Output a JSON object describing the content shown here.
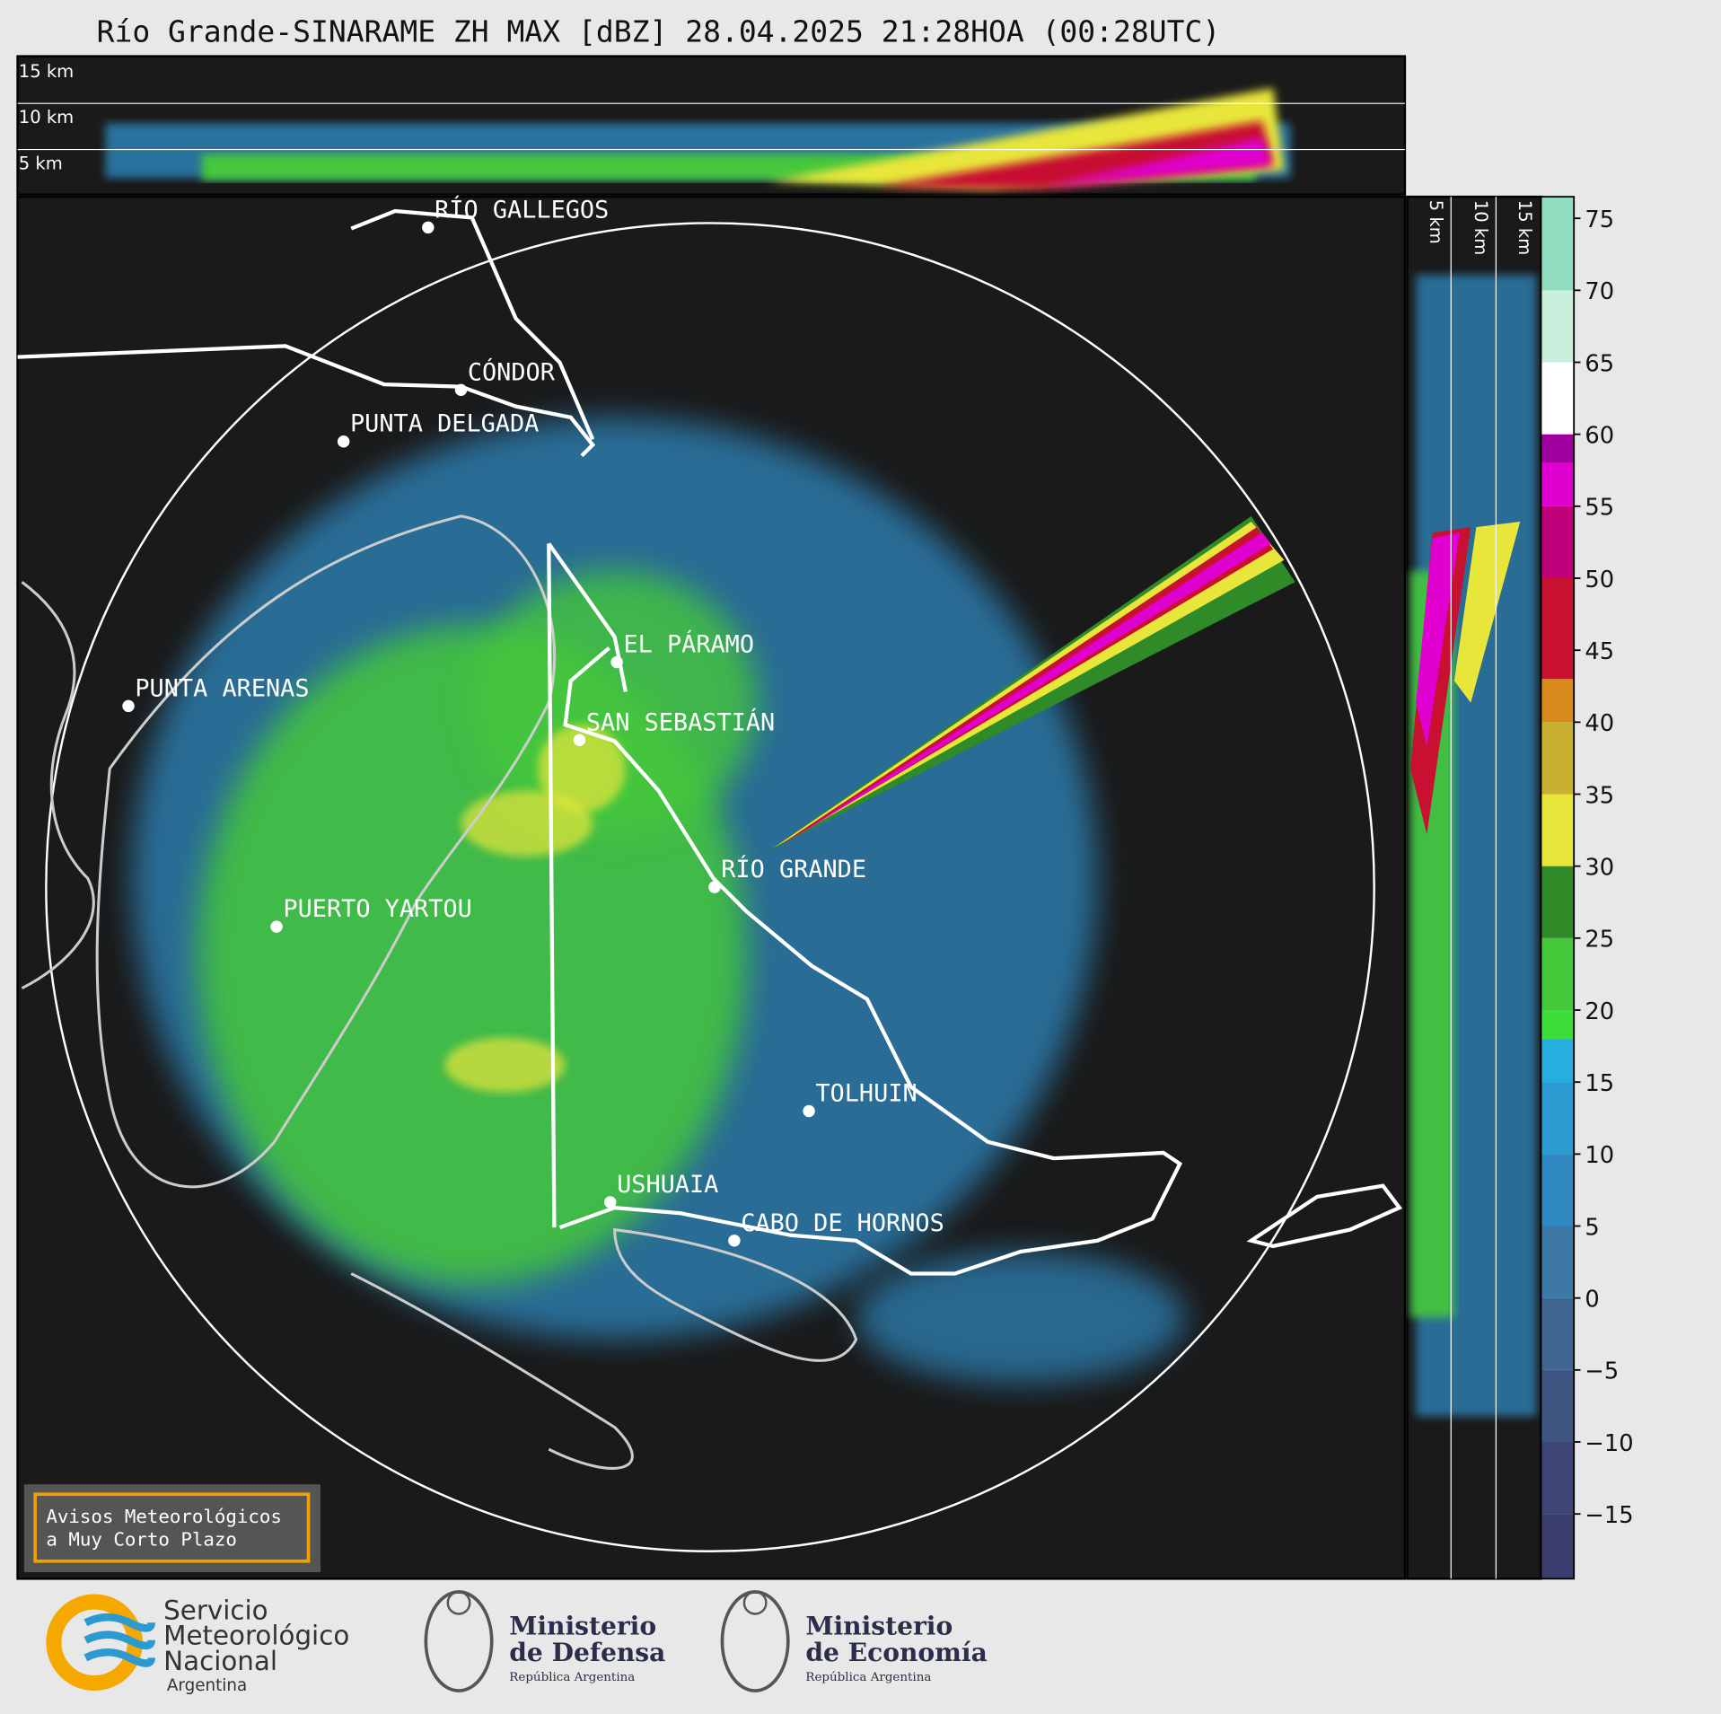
{
  "header": {
    "title": "Río Grande-SINARAME ZH MAX [dBZ] 28.04.2025 21:28HOA (00:28UTC)"
  },
  "top_panel": {
    "labels": [
      "15 km",
      "10 km",
      "5 km"
    ]
  },
  "side_panel": {
    "labels": [
      "5 km",
      "10 km",
      "15 km"
    ]
  },
  "places": [
    "RÍO GALLEGOS",
    "CÓNDOR",
    "PUNTA DELGADA",
    "EL PÁRAMO",
    "PUNTA ARENAS",
    "SAN SEBASTIÁN",
    "RÍO GRANDE",
    "PUERTO YARTOU",
    "TOLHUIN",
    "USHUAIA",
    "CABO DE HORNOS"
  ],
  "colorbar": {
    "lim": [
      -19.5,
      76.5
    ],
    "ticks": [
      75,
      70,
      65,
      60,
      55,
      50,
      45,
      40,
      35,
      30,
      25,
      20,
      15,
      10,
      5,
      0,
      {
        "value": -5,
        "label": "−5"
      },
      {
        "value": -10,
        "label": "−10"
      },
      {
        "value": -15,
        "label": "−15"
      }
    ],
    "bounds": [
      -19.5,
      -15,
      -10,
      -5,
      0,
      5,
      10,
      15,
      18,
      20,
      25,
      30,
      35,
      40,
      43,
      50,
      55,
      58,
      60,
      65,
      70,
      76.5
    ],
    "colors": [
      "#3a3d6e",
      "#3d4677",
      "#3f5582",
      "#3f6690",
      "#3d77a5",
      "#2f88bf",
      "#2a9ad0",
      "#27aee0",
      "#3ede3a",
      "#44c83a",
      "#2f8a28",
      "#e8e63a",
      "#c9b030",
      "#d98a1c",
      "#c81030",
      "#c0007a",
      "#e000d0",
      "#a000a0",
      "#ffffff",
      "#c8f0dd",
      "#8fdcbf"
    ]
  },
  "warning": {
    "lines": [
      "Avisos Meteorológicos",
      "a Muy Corto Plazo"
    ]
  },
  "logos": {
    "smn": [
      "Servicio",
      "Meteorológico",
      "Nacional",
      "Argentina"
    ],
    "defensa": [
      "Ministerio",
      "de Defensa",
      "República Argentina"
    ],
    "economia": [
      "Ministerio",
      "de Economía",
      "República Argentina"
    ]
  }
}
